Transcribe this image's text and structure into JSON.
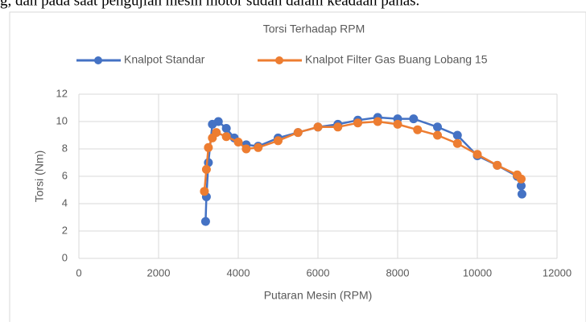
{
  "page_text": "g, dan pada saat pengujian mesin motor  sudah dalam keadaan panas.",
  "chart_data": {
    "type": "scatter",
    "title": "Torsi Terhadap RPM",
    "x_label": "Putaran Mesin (RPM)",
    "y_label": "Torsi (Nm)",
    "xlim": [
      0,
      12000
    ],
    "xticks": [
      0,
      2000,
      4000,
      6000,
      8000,
      10000,
      12000
    ],
    "ylim": [
      0,
      12
    ],
    "yticks": [
      0,
      2,
      4,
      6,
      8,
      10,
      12
    ],
    "grid": true,
    "legend": "top",
    "series": [
      {
        "name": "Knalpot Standar",
        "color": "#4472c4",
        "x": [
          3180,
          3200,
          3250,
          3350,
          3500,
          3700,
          3900,
          4200,
          4500,
          5000,
          5500,
          6000,
          6500,
          7000,
          7500,
          8000,
          8400,
          9000,
          9500,
          10000,
          10500,
          11000,
          11100,
          11120
        ],
        "values": [
          2.7,
          4.5,
          7,
          9.8,
          10,
          9.5,
          8.8,
          8.3,
          8.2,
          8.8,
          9.2,
          9.6,
          9.8,
          10.1,
          10.3,
          10.2,
          10.2,
          9.6,
          9,
          7.5,
          6.8,
          6,
          5.3,
          4.7
        ]
      },
      {
        "name": "Knalpot Filter Gas Buang Lobang 15",
        "color": "#ed7d31",
        "x": [
          3150,
          3200,
          3250,
          3350,
          3450,
          3700,
          4000,
          4200,
          4500,
          5000,
          5500,
          6000,
          6500,
          7000,
          7500,
          8000,
          8500,
          9000,
          9500,
          10000,
          10500,
          11000,
          11100
        ],
        "values": [
          4.9,
          6.5,
          8.1,
          8.8,
          9.2,
          8.9,
          8.5,
          8,
          8.1,
          8.6,
          9.2,
          9.6,
          9.6,
          9.9,
          10,
          9.8,
          9.4,
          9,
          8.4,
          7.6,
          6.8,
          6.1,
          5.8
        ]
      }
    ]
  }
}
